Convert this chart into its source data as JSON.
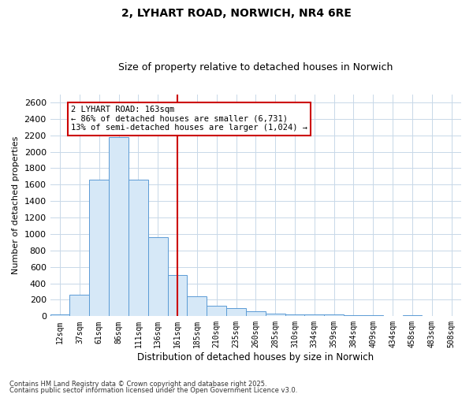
{
  "title": "2, LYHART ROAD, NORWICH, NR4 6RE",
  "subtitle": "Size of property relative to detached houses in Norwich",
  "xlabel": "Distribution of detached houses by size in Norwich",
  "ylabel": "Number of detached properties",
  "footnote1": "Contains HM Land Registry data © Crown copyright and database right 2025.",
  "footnote2": "Contains public sector information licensed under the Open Government Licence v3.0.",
  "annotation_line1": "2 LYHART ROAD: 163sqm",
  "annotation_line2": "← 86% of detached houses are smaller (6,731)",
  "annotation_line3": "13% of semi-detached houses are larger (1,024) →",
  "bar_color": "#d6e8f7",
  "bar_edge_color": "#5b9bd5",
  "vline_color": "#cc0000",
  "annotation_box_edge": "#cc0000",
  "background_color": "#ffffff",
  "grid_color": "#c8d8e8",
  "categories": [
    "12sqm",
    "37sqm",
    "61sqm",
    "86sqm",
    "111sqm",
    "136sqm",
    "161sqm",
    "185sqm",
    "210sqm",
    "235sqm",
    "260sqm",
    "285sqm",
    "310sqm",
    "334sqm",
    "359sqm",
    "384sqm",
    "409sqm",
    "434sqm",
    "458sqm",
    "483sqm",
    "508sqm"
  ],
  "values": [
    25,
    265,
    1660,
    2180,
    1660,
    960,
    500,
    240,
    130,
    100,
    60,
    35,
    25,
    20,
    20,
    12,
    8,
    4,
    12,
    4,
    2
  ],
  "ylim": [
    0,
    2700
  ],
  "yticks": [
    0,
    200,
    400,
    600,
    800,
    1000,
    1200,
    1400,
    1600,
    1800,
    2000,
    2200,
    2400,
    2600
  ],
  "vline_index": 6
}
